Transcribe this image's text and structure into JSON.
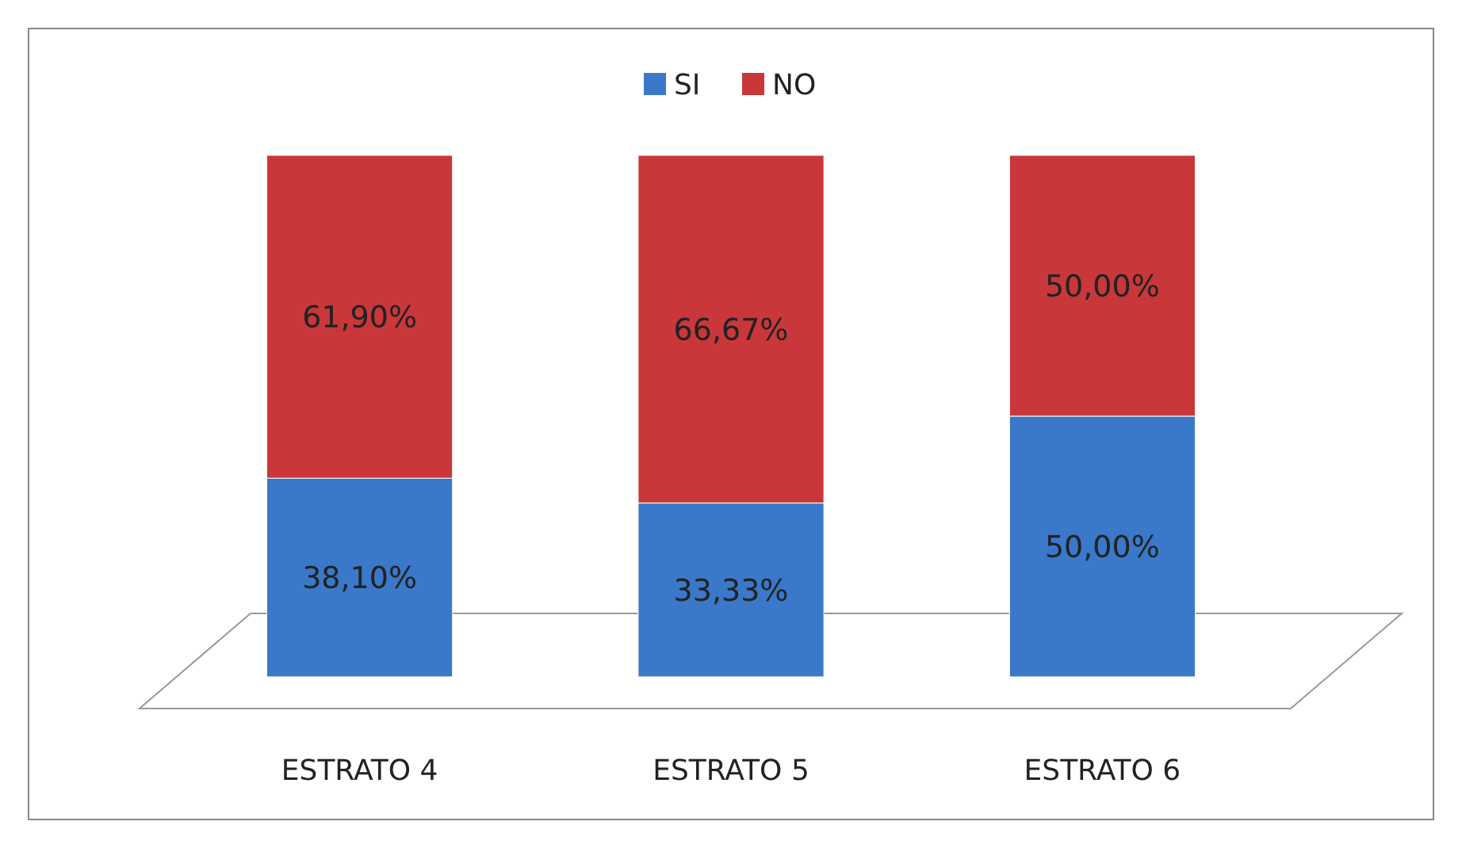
{
  "chart_data": {
    "type": "bar",
    "stacked": true,
    "legend": "top",
    "categories": [
      "ESTRATO 4",
      "ESTRATO 5",
      "ESTRATO 6"
    ],
    "series": [
      {
        "name": "SI",
        "color": "#3a78c9",
        "values": [
          38.1,
          33.33,
          50.0
        ],
        "value_labels": [
          "38,10%",
          "33,33%",
          "50,00%"
        ]
      },
      {
        "name": "NO",
        "color": "#c9373a",
        "values": [
          61.9,
          66.67,
          50.0
        ],
        "value_labels": [
          "61,90%",
          "66,67%",
          "50,00%"
        ]
      }
    ]
  }
}
